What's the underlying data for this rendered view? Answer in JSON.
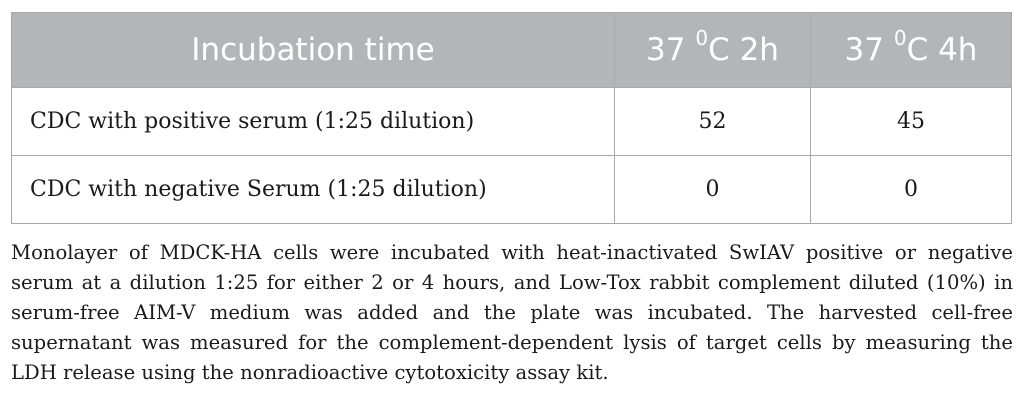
{
  "table": {
    "header": {
      "col0": "Incubation time",
      "col1": {
        "pre": "37 ",
        "sup": "0",
        "post": "C 2h"
      },
      "col2": {
        "pre": "37 ",
        "sup": "0",
        "post": "C 4h"
      }
    },
    "rows": [
      {
        "label": "CDC with positive serum (1:25 dilution)",
        "v2h": "52",
        "v4h": "45"
      },
      {
        "label": "CDC with negative Serum (1:25 dilution)",
        "v2h": "0",
        "v4h": "0"
      }
    ],
    "header_bg": "#b3b6b9",
    "border_color": "#a7a9ac"
  },
  "caption": "Monolayer of MDCK-HA cells were incubated with heat-inactivated SwIAV positive or negative serum at a dilution 1:25 for either 2 or 4 hours, and Low-Tox rabbit complement diluted (10%) in serum-free AIM-V medium was added and the plate was incubated. The harvested cell-free supernatant was measured for the complement-dependent lysis of target cells by measuring the LDH release using the nonradioactive cytotoxicity assay kit."
}
